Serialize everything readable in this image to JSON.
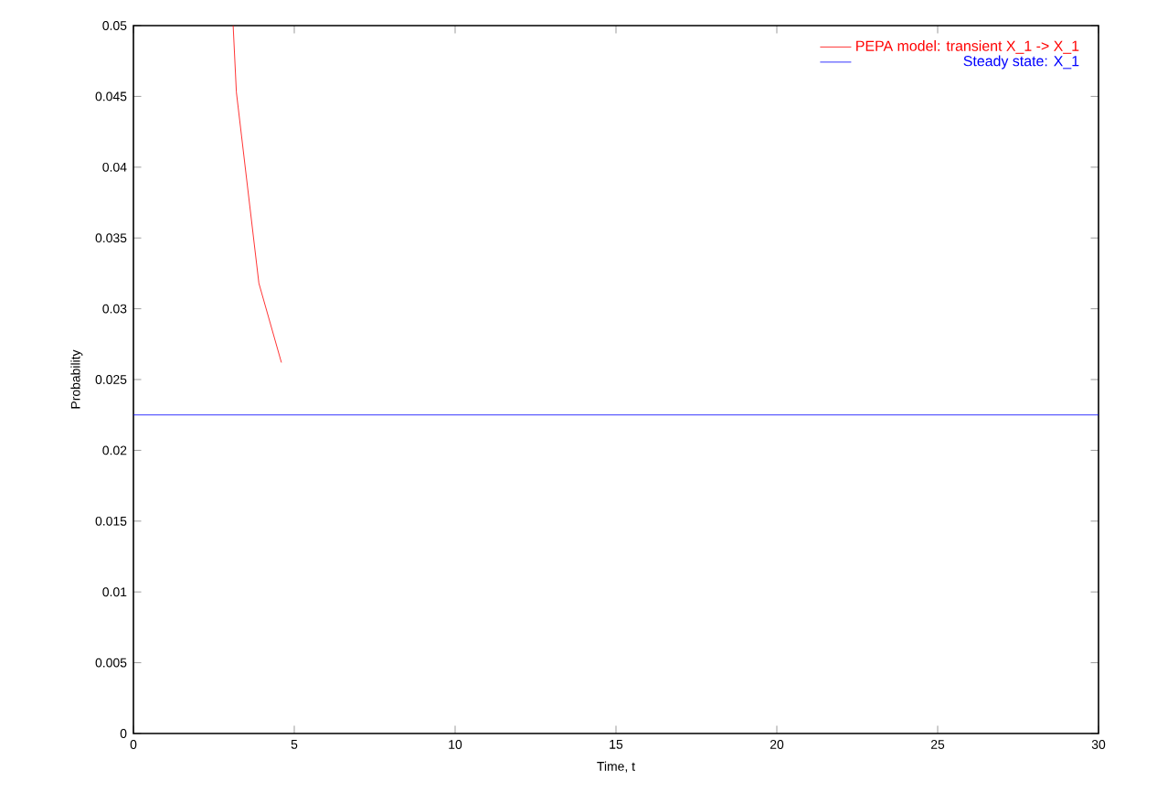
{
  "chart_data": {
    "type": "line",
    "xlabel": "Time, t",
    "ylabel": "Probability",
    "xlim": [
      0,
      30
    ],
    "ylim": [
      0,
      0.05
    ],
    "xticks": [
      0,
      5,
      10,
      15,
      20,
      25,
      30
    ],
    "yticks": [
      0,
      0.005,
      0.01,
      0.015,
      0.02,
      0.025,
      0.03,
      0.035,
      0.04,
      0.045,
      0.05
    ],
    "legend": "top right",
    "grid": false,
    "series": [
      {
        "name": "PEPA model: transient X_1 -> X_1",
        "color": "#ff0000",
        "x": [
          3.1,
          3.2,
          3.9,
          4.6
        ],
        "values": [
          0.05,
          0.0453,
          0.0318,
          0.0262
        ]
      },
      {
        "name": "Steady state: X_1",
        "color": "#0000ff",
        "x": [
          0,
          30
        ],
        "values": [
          0.0225,
          0.0225
        ]
      }
    ]
  }
}
